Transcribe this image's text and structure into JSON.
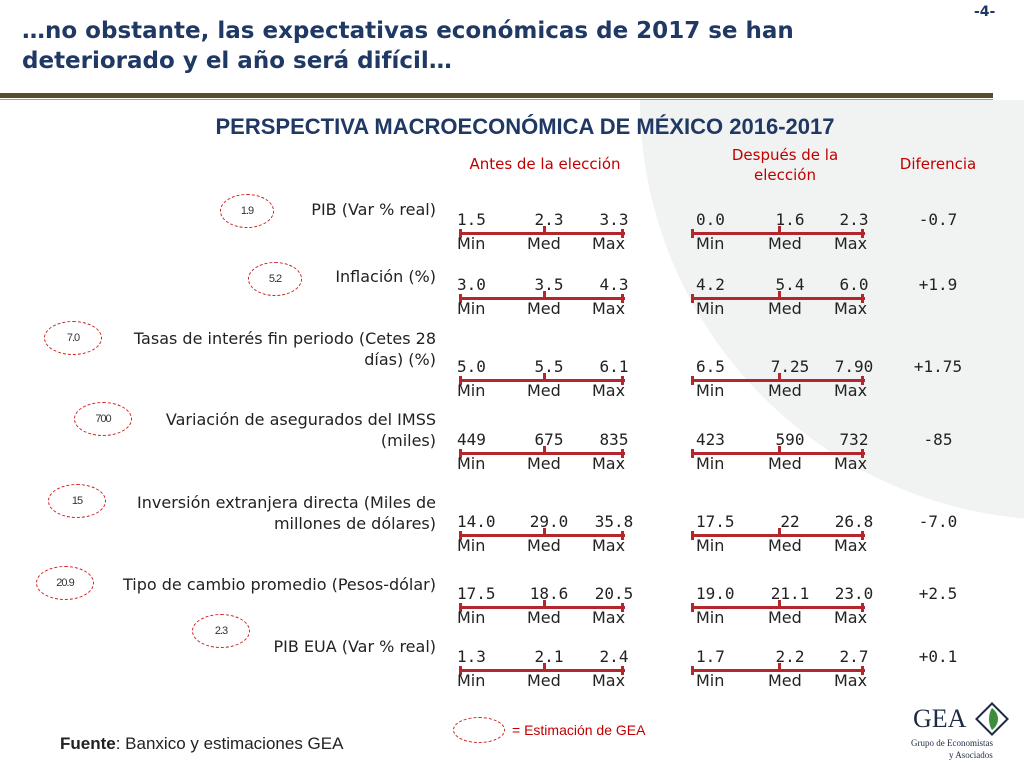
{
  "page_number": "-4-",
  "headline_line1": "…no obstante, las expectativas económicas de 2017 se han",
  "headline_line2": "deteriorado y el año será difícil…",
  "subtitle": "PERSPECTIVA MACROECONÓMICA DE MÉXICO 2016-2017",
  "columns": {
    "before": "Antes de la elección",
    "after_line1": "Después de la",
    "after_line2": "elección",
    "diff": "Diferencia"
  },
  "minmax": {
    "min": "Min",
    "med": "Med",
    "max": "Max"
  },
  "rows": [
    {
      "label": "PIB (Var % real)",
      "gea": "1.9",
      "before": [
        "1.5",
        "2.3",
        "3.3"
      ],
      "after": [
        "0.0",
        "1.6",
        "2.3"
      ],
      "diff": "-0.7"
    },
    {
      "label": "Inflación (%)",
      "gea": "5.2",
      "before": [
        "3.0",
        "3.5",
        "4.3"
      ],
      "after": [
        "4.2",
        "5.4",
        "6.0"
      ],
      "diff": "+1.9"
    },
    {
      "label": "Tasas de interés fin periodo (Cetes 28 días) (%)",
      "label_line1": "Tasas de interés fin periodo (Cetes 28",
      "label_line2": "días) (%)",
      "gea": "7.0",
      "before": [
        "5.0",
        "5.5",
        "6.1"
      ],
      "after": [
        "6.5",
        "7.25",
        "7.90"
      ],
      "diff": "+1.75"
    },
    {
      "label": "Variación de asegurados del IMSS (miles)",
      "label_line1": "Variación de asegurados del IMSS",
      "label_line2": "(miles)",
      "gea": "700",
      "before": [
        "449",
        "675",
        "835"
      ],
      "after": [
        "423",
        "590",
        "732"
      ],
      "diff": "-85"
    },
    {
      "label": "Inversión extranjera directa (Miles de millones de dólares)",
      "label_line1": "Inversión extranjera directa (Miles de",
      "label_line2": "millones de dólares)",
      "gea": "15",
      "before": [
        "14.0",
        "29.0",
        "35.8"
      ],
      "after": [
        "17.5",
        "22",
        "26.8"
      ],
      "diff": "-7.0"
    },
    {
      "label": "Tipo de cambio promedio (Pesos-dólar)",
      "gea": "20.9",
      "before": [
        "17.5",
        "18.6",
        "20.5"
      ],
      "after": [
        "19.0",
        "21.1",
        "23.0"
      ],
      "diff": "+2.5"
    },
    {
      "label": "PIB EUA (Var % real)",
      "gea": "2.3",
      "before": [
        "1.3",
        "2.1",
        "2.4"
      ],
      "after": [
        "1.7",
        "2.2",
        "2.7"
      ],
      "diff": "+0.1"
    }
  ],
  "source_label": "Fuente",
  "source_text": ": Banxico y estimaciones GEA",
  "legend_text": "= Estimación de GEA",
  "logo": {
    "name": "GEA",
    "line1": "Grupo de Economistas",
    "line2": "y Asociados"
  },
  "colors": {
    "title": "#1f3864",
    "accent": "#c00000",
    "bar": "#b3262b",
    "rule": "#5a4a2e"
  }
}
